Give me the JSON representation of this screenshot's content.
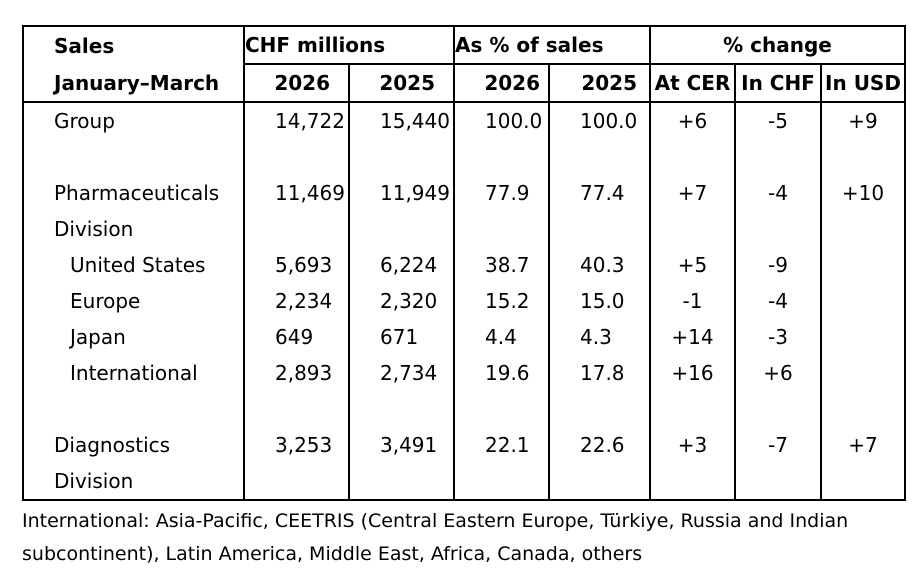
{
  "header": {
    "sales": "Sales",
    "period": "January–March",
    "chf": "CHF millions",
    "pct_sales": "As % of sales",
    "pct_change": "% change",
    "y2026": "2026",
    "y2025": "2025",
    "cer": "At CER",
    "in_chf": "In CHF",
    "in_usd": "In USD"
  },
  "rows": [
    {
      "label": "Group",
      "c26": "14,722",
      "c25": "15,440",
      "p26": "100.0",
      "p25": "100.0",
      "cer": "+6",
      "chf": "-5",
      "usd": "+9"
    },
    {
      "label": "Pharmaceuticals",
      "label2": "Division",
      "c26": "11,469",
      "c25": "11,949",
      "p26": "77.9",
      "p25": "77.4",
      "cer": "+7",
      "chf": "-4",
      "usd": "+10"
    },
    {
      "label": "United States",
      "c26": "5,693",
      "c25": "6,224",
      "p26": "38.7",
      "p25": "40.3",
      "cer": "+5",
      "chf": "-9",
      "usd": ""
    },
    {
      "label": "Europe",
      "c26": "2,234",
      "c25": "2,320",
      "p26": "15.2",
      "p25": "15.0",
      "cer": "-1",
      "chf": "-4",
      "usd": ""
    },
    {
      "label": "Japan",
      "c26": "649",
      "c25": "671",
      "p26": "4.4",
      "p25": "4.3",
      "cer": "+14",
      "chf": "-3",
      "usd": ""
    },
    {
      "label": "International",
      "c26": "2,893",
      "c25": "2,734",
      "p26": "19.6",
      "p25": "17.8",
      "cer": "+16",
      "chf": "+6",
      "usd": ""
    },
    {
      "label": "Diagnostics",
      "label2": "Division",
      "c26": "3,253",
      "c25": "3,491",
      "p26": "22.1",
      "p25": "22.6",
      "cer": "+3",
      "chf": "-7",
      "usd": "+7"
    }
  ],
  "footnote": "International: Asia-Pacific, CEETRIS (Central Eastern Europe, Türkiye, Russia and Indian subcontinent), Latin America, Middle East, Africa, Canada, others"
}
